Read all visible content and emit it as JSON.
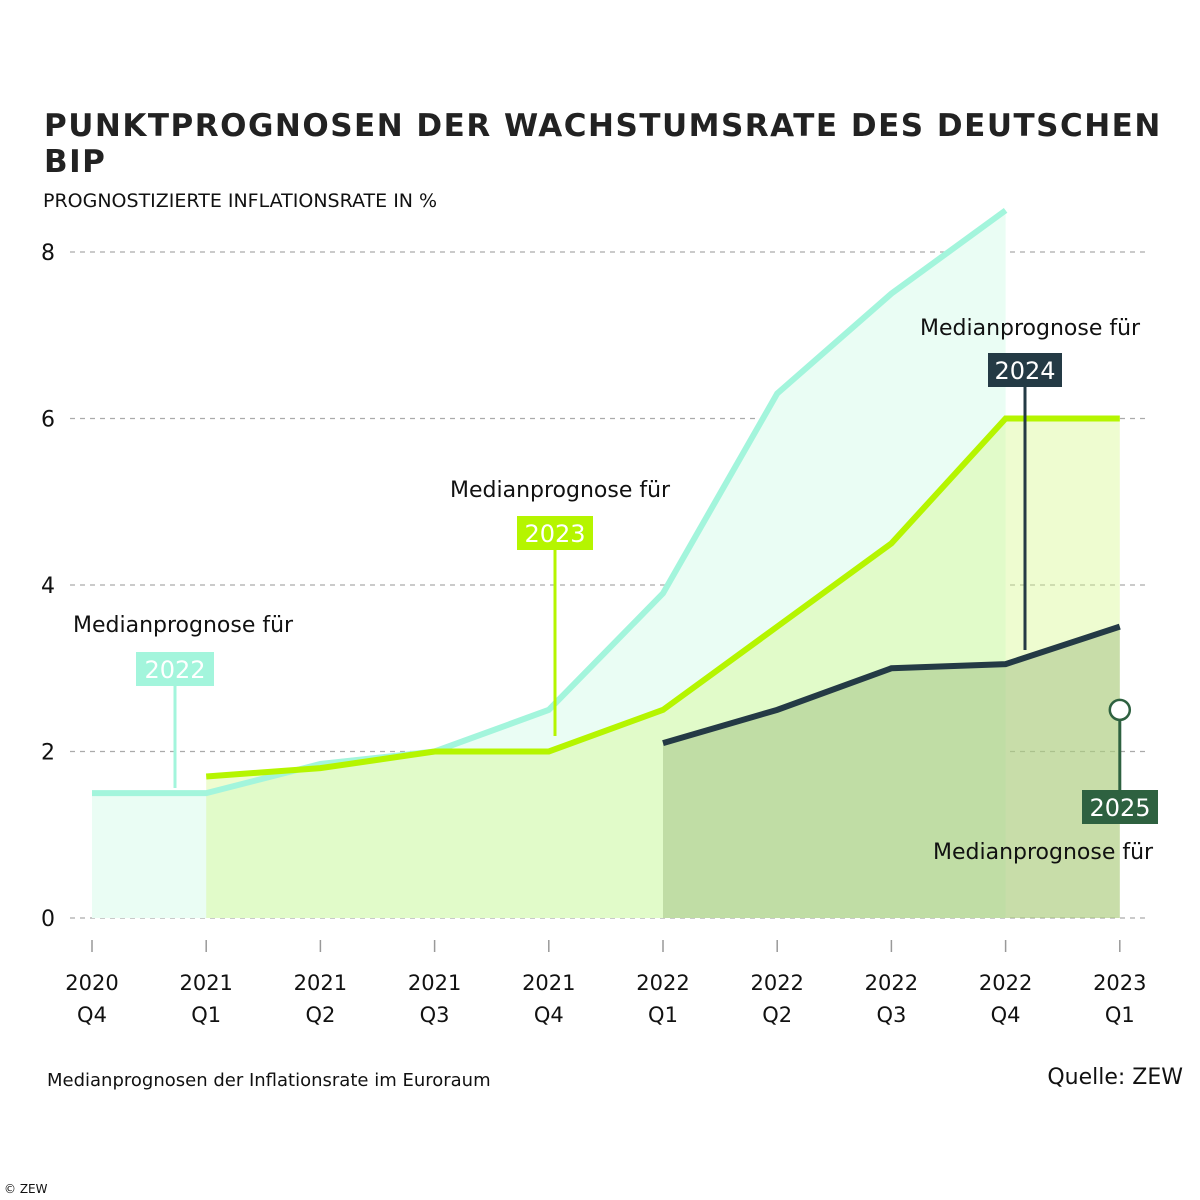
{
  "title": "PUNKTPROGNOSEN DER WACHSTUMSRATE DES DEUTSCHEN BIP",
  "note": "Medianprognosen der Inflationsrate im Euroraum",
  "source": "Quelle: ZEW",
  "copyright": "© ZEW",
  "chart_data": {
    "type": "area",
    "ylabel": "PROGNOSTIZIERTE INFLATIONSRATE IN %",
    "ylim": [
      0,
      8
    ],
    "yticks": [
      0,
      2,
      4,
      6,
      8
    ],
    "grid": "horizontal dashed",
    "categories": [
      [
        "2020",
        "Q4"
      ],
      [
        "2021",
        "Q1"
      ],
      [
        "2021",
        "Q2"
      ],
      [
        "2021",
        "Q3"
      ],
      [
        "2021",
        "Q4"
      ],
      [
        "2022",
        "Q1"
      ],
      [
        "2022",
        "Q2"
      ],
      [
        "2022",
        "Q3"
      ],
      [
        "2022",
        "Q4"
      ],
      [
        "2023",
        "Q1"
      ]
    ],
    "series": [
      {
        "name": "2022",
        "label": "Medianprognose für",
        "color": "#a3f5dc",
        "fill": "#eafdf4",
        "values": [
          1.5,
          1.5,
          1.85,
          2.0,
          2.5,
          3.9,
          6.3,
          7.5,
          8.5,
          null
        ]
      },
      {
        "name": "2023",
        "label": "Medianprognose für",
        "color": "#b5f500",
        "fill": "#dcf9b4",
        "values": [
          null,
          1.7,
          1.8,
          2.0,
          2.0,
          2.5,
          3.5,
          4.5,
          6.0,
          6.0
        ]
      },
      {
        "name": "2024",
        "label": "Medianprognose für",
        "color": "#243a45",
        "fill": "#c2dfb0",
        "values": [
          null,
          null,
          null,
          null,
          null,
          2.1,
          2.5,
          3.0,
          3.05,
          3.5
        ]
      },
      {
        "name": "2025",
        "label": "Medianprognose für",
        "color": "#2e6140",
        "fill": "none",
        "values": [
          null,
          null,
          null,
          null,
          null,
          null,
          null,
          null,
          null,
          2.5
        ]
      }
    ]
  }
}
